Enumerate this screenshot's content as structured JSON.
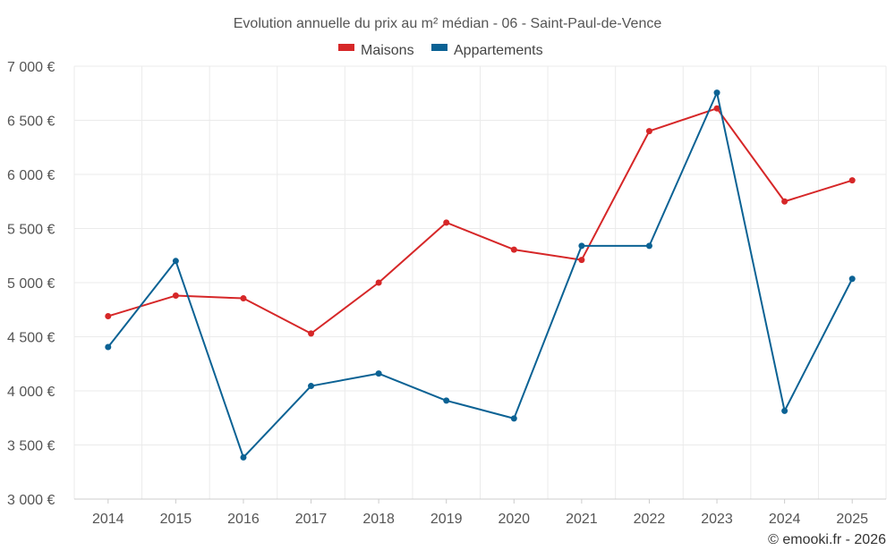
{
  "chart_data": {
    "type": "line",
    "title": "Evolution annuelle du prix au m² médian - 06 - Saint-Paul-de-Vence",
    "categories": [
      "2014",
      "2015",
      "2016",
      "2017",
      "2018",
      "2019",
      "2020",
      "2021",
      "2022",
      "2023",
      "2024",
      "2025"
    ],
    "series": [
      {
        "name": "Maisons",
        "color": "#d62728",
        "values": [
          4690,
          4880,
          4855,
          4530,
          5000,
          5555,
          5305,
          5210,
          6400,
          6610,
          5750,
          5945
        ]
      },
      {
        "name": "Appartements",
        "color": "#0b6294",
        "values": [
          4405,
          5200,
          3385,
          4045,
          4160,
          3910,
          3745,
          5340,
          5340,
          6755,
          3815,
          5035
        ]
      }
    ],
    "ylim": [
      3000,
      7000
    ],
    "yticks": [
      3000,
      3500,
      4000,
      4500,
      5000,
      5500,
      6000,
      6500,
      7000
    ],
    "ytick_labels": [
      "3 000 €",
      "3 500 €",
      "4 000 €",
      "4 500 €",
      "5 000 €",
      "5 500 €",
      "6 000 €",
      "6 500 €",
      "7 000 €"
    ],
    "xlabel": "",
    "ylabel": "",
    "grid": true,
    "legend_position": "top-center"
  },
  "credit": "© emooki.fr - 2026"
}
